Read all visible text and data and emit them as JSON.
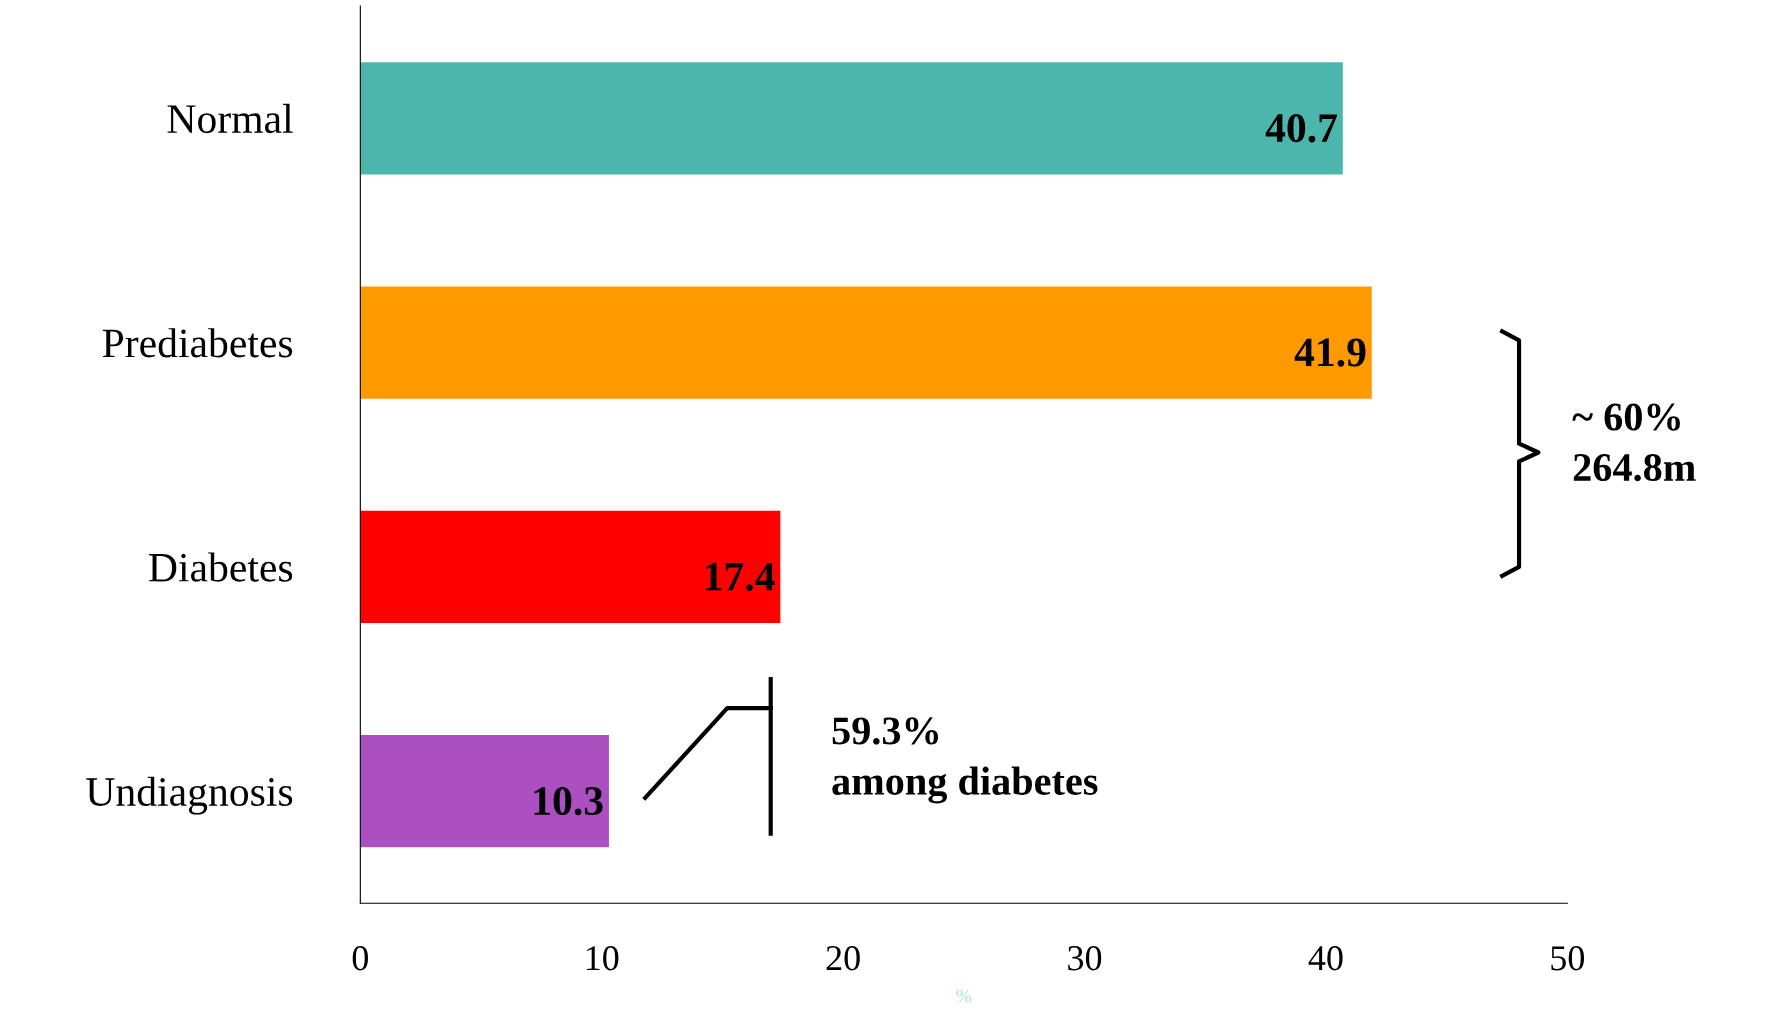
{
  "chart_data": {
    "type": "bar",
    "orientation": "horizontal",
    "xlabel": "%",
    "categories": [
      "Normal",
      "Prediabetes",
      "Diabetes",
      "Undiagnosis"
    ],
    "values": [
      40.7,
      41.9,
      17.4,
      10.3
    ],
    "colors": [
      "#4db6ac",
      "#ff9900",
      "#ff0000",
      "#ab4fc1"
    ],
    "xlim": [
      0,
      50
    ],
    "xticks": [
      0,
      10,
      20,
      30,
      40,
      50
    ],
    "grid": false,
    "data_labels": true,
    "annotations": [
      "~ 60%\n264.8m",
      "59.3%\namong diabetes"
    ]
  }
}
